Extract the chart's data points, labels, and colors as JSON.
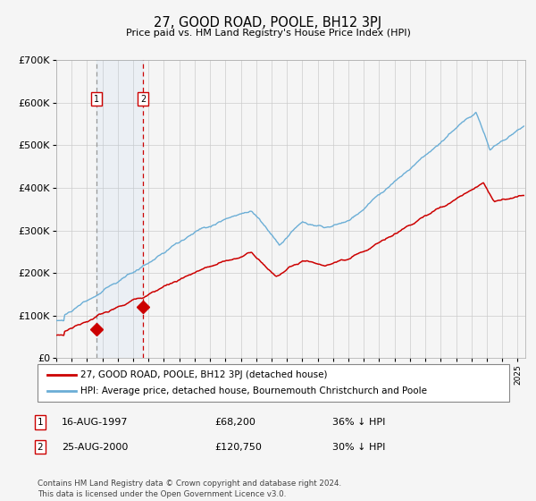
{
  "title": "27, GOOD ROAD, POOLE, BH12 3PJ",
  "subtitle": "Price paid vs. HM Land Registry's House Price Index (HPI)",
  "legend_line1": "27, GOOD ROAD, POOLE, BH12 3PJ (detached house)",
  "legend_line2": "HPI: Average price, detached house, Bournemouth Christchurch and Poole",
  "transaction1_date": "16-AUG-1997",
  "transaction1_price": "£68,200",
  "transaction1_hpi": "36% ↓ HPI",
  "transaction1_year": 1997.62,
  "transaction1_value": 68200,
  "transaction2_date": "25-AUG-2000",
  "transaction2_price": "£120,750",
  "transaction2_hpi": "30% ↓ HPI",
  "transaction2_year": 2000.64,
  "transaction2_value": 120750,
  "footer": "Contains HM Land Registry data © Crown copyright and database right 2024.\nThis data is licensed under the Open Government Licence v3.0.",
  "hpi_color": "#6baed6",
  "price_color": "#cc0000",
  "background_color": "#f5f5f5",
  "grid_color": "#cccccc",
  "ylim": [
    0,
    700000
  ],
  "xlim_start": 1995.0,
  "xlim_end": 2025.5
}
